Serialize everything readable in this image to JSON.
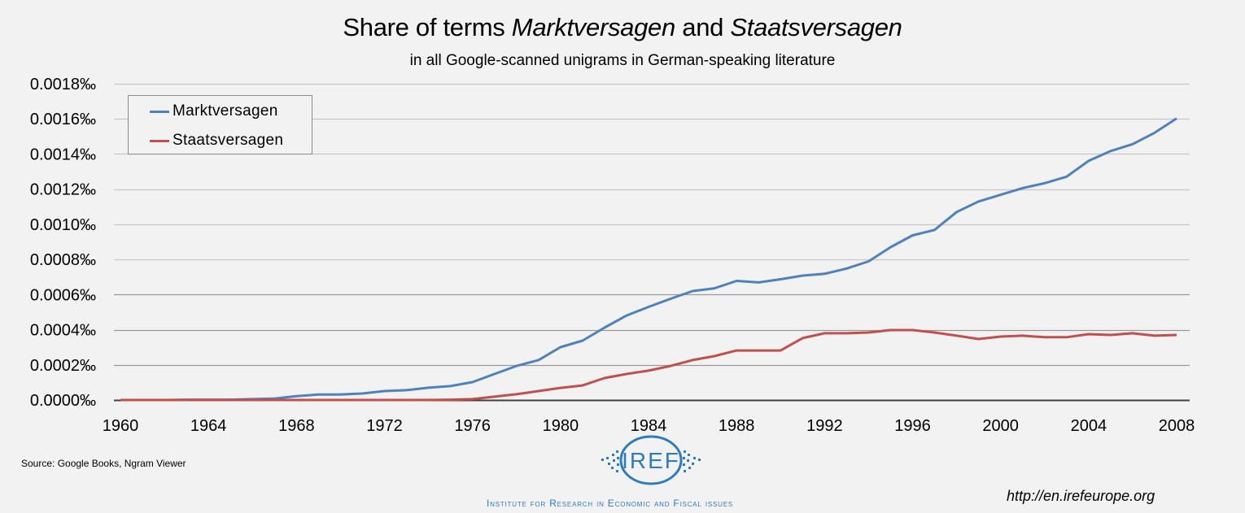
{
  "chart_data": {
    "type": "line",
    "title": "Share of terms Marktversagen and Staatsversagen",
    "title_parts": {
      "p1": "Share of terms ",
      "p2": "Marktversagen",
      "p3": " and ",
      "p4": "Staatsversagen"
    },
    "subtitle": "in all Google-scanned unigrams in German-speaking literature",
    "xlabel": "",
    "ylabel": "",
    "x": [
      1960,
      1961,
      1962,
      1963,
      1964,
      1965,
      1966,
      1967,
      1968,
      1969,
      1970,
      1971,
      1972,
      1973,
      1974,
      1975,
      1976,
      1977,
      1978,
      1979,
      1980,
      1981,
      1982,
      1983,
      1984,
      1985,
      1986,
      1987,
      1988,
      1989,
      1990,
      1991,
      1992,
      1993,
      1994,
      1995,
      1996,
      1997,
      1998,
      1999,
      2000,
      2001,
      2002,
      2003,
      2004,
      2005,
      2006,
      2007,
      2008
    ],
    "xlim": [
      1960,
      2008
    ],
    "x_ticks": [
      "1960",
      "1964",
      "1968",
      "1972",
      "1976",
      "1980",
      "1984",
      "1988",
      "1992",
      "1996",
      "2000",
      "2004",
      "2008"
    ],
    "x_tick_values": [
      1960,
      1964,
      1968,
      1972,
      1976,
      1980,
      1984,
      1988,
      1992,
      1996,
      2000,
      2004,
      2008
    ],
    "ylim": [
      0,
      0.0018
    ],
    "y_unit": "‰",
    "y_ticks": [
      "0.0000‰",
      "0.0002‰",
      "0.0004‰",
      "0.0006‰",
      "0.0008‰",
      "0.0010‰",
      "0.0012‰",
      "0.0014‰",
      "0.0016‰",
      "0.0018‰"
    ],
    "y_tick_values": [
      0,
      0.0002,
      0.0004,
      0.0006,
      0.0008,
      0.001,
      0.0012,
      0.0014,
      0.0016,
      0.0018
    ],
    "grid": true,
    "legend_position": "top-left",
    "series": [
      {
        "name": "Marktversagen",
        "color": "#4f81bd",
        "values": [
          0,
          0,
          0,
          2e-06,
          2e-06,
          2e-06,
          5e-06,
          8e-06,
          2.2e-05,
          3.1e-05,
          3.1e-05,
          3.7e-05,
          5.1e-05,
          5.6e-05,
          7e-05,
          7.9e-05,
          0.000102,
          0.000148,
          0.000194,
          0.000227,
          0.000301,
          0.000338,
          0.000412,
          0.000481,
          0.00053,
          0.000576,
          0.00062,
          0.000636,
          0.000678,
          0.000669,
          0.000687,
          0.000708,
          0.000718,
          0.000748,
          0.000789,
          0.00087,
          0.000937,
          0.000968,
          0.00107,
          0.00113,
          0.001168,
          0.001206,
          0.001234,
          0.001271,
          0.001361,
          0.001417,
          0.001456,
          0.001521,
          0.001603
        ]
      },
      {
        "name": "Staatsversagen",
        "color": "#c0504d",
        "values": [
          0,
          0,
          0,
          0,
          0,
          0,
          0,
          0,
          0,
          0,
          0,
          0,
          0,
          0,
          0,
          2e-06,
          5e-06,
          1.9e-05,
          3.3e-05,
          5.1e-05,
          6.9e-05,
          8.3e-05,
          0.000125,
          0.000148,
          0.000167,
          0.000194,
          0.000227,
          0.00025,
          0.000282,
          0.000282,
          0.000282,
          0.000352,
          0.00038,
          0.00038,
          0.000384,
          0.000398,
          0.000398,
          0.000384,
          0.000366,
          0.000347,
          0.000361,
          0.000366,
          0.000357,
          0.000357,
          0.000375,
          0.00037,
          0.00038,
          0.000366,
          0.00037
        ]
      }
    ]
  },
  "footer": {
    "source": "Source:  Google Books, Ngram Viewer",
    "logo_text": "IREF",
    "institute": "Institute for Research in Economic and Fiscal issues",
    "url": "http://en.irefeurope.org",
    "logo_color": "#2f7bc0"
  }
}
